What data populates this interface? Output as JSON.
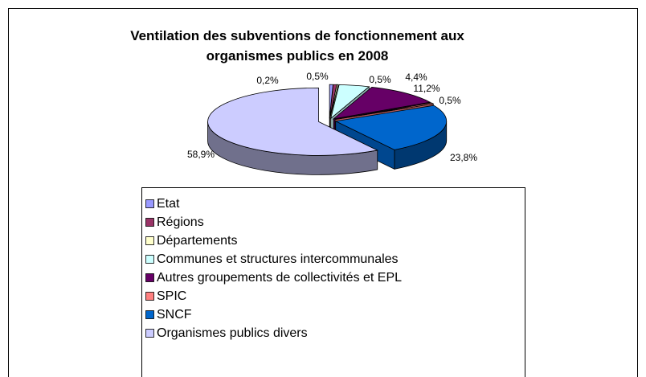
{
  "chart_data": {
    "type": "pie",
    "title": "Ventilation des subventions de fonctionnement aux organismes publics en 2008",
    "categories": [
      "Etat",
      "Régions",
      "Départements",
      "Communes et structures intercommunales",
      "Autres groupements de collectivités et EPL",
      "SPIC",
      "SNCF",
      "Organismes publics divers"
    ],
    "values": [
      0.5,
      0.5,
      0.2,
      4.4,
      11.2,
      0.5,
      23.8,
      58.9
    ],
    "value_labels": [
      "0,5%",
      "0,5%",
      "0,2%",
      "4,4%",
      "11,2%",
      "0,5%",
      "23,8%",
      "58,9%"
    ],
    "colors": [
      "#9999ff",
      "#993366",
      "#ffffcc",
      "#ccffff",
      "#660066",
      "#ff8080",
      "#0066cc",
      "#ccccff"
    ],
    "legend": "bottom"
  }
}
